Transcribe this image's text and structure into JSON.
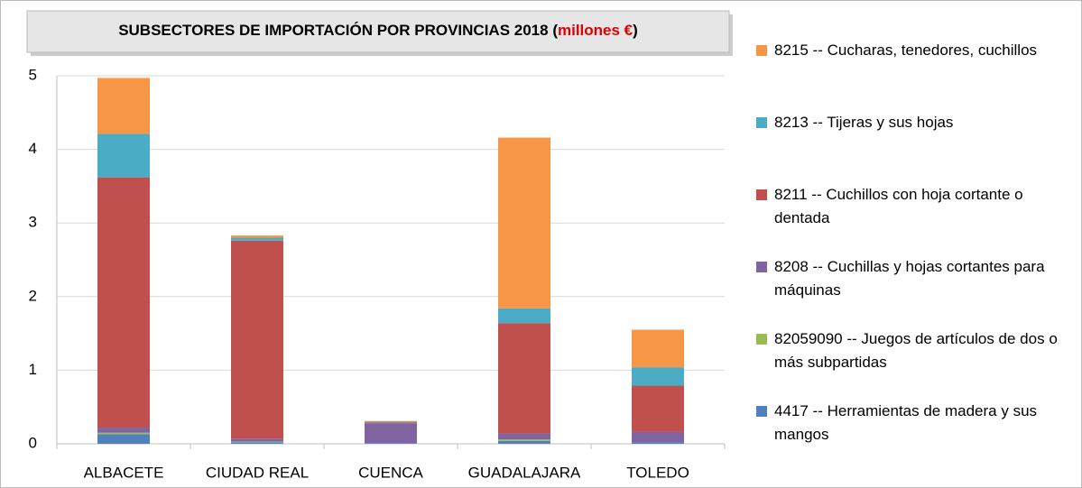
{
  "chart_data": {
    "type": "stacked_bar",
    "title_parts": [
      "SUBSECTORES  DE IMPORTACIÓN  POR PROVINCIAS 2018 (",
      "millones €",
      ")"
    ],
    "categories": [
      "ALBACETE",
      "CIUDAD REAL",
      "CUENCA",
      "GUADALAJARA",
      "TOLEDO"
    ],
    "series": [
      {
        "name": "4417 -- Herramientas de madera y sus mangos",
        "color": "#4f81bd",
        "values": [
          0.13,
          0.02,
          0.01,
          0.04,
          0.02
        ]
      },
      {
        "name": "82059090 -- Juegos de artículos de dos o más subpartidas",
        "color": "#9bbb59",
        "values": [
          0.02,
          0.01,
          0,
          0.02,
          0
        ]
      },
      {
        "name": "8208 -- Cuchillas y hojas cortantes para máquinas",
        "color": "#8064a2",
        "values": [
          0.07,
          0.04,
          0.27,
          0.08,
          0.14
        ]
      },
      {
        "name": "8211 -- Cuchillos con hoja cortante o dentada",
        "color": "#c0504d",
        "values": [
          3.4,
          2.69,
          0.01,
          1.5,
          0.63
        ]
      },
      {
        "name": "8213 -- Tijeras y sus hojas",
        "color": "#4bacc6",
        "values": [
          0.59,
          0.04,
          0.01,
          0.2,
          0.25
        ]
      },
      {
        "name": "8215 --  Cucharas, tenedores, cuchillos",
        "color": "#f79646",
        "values": [
          0.76,
          0.03,
          0.01,
          2.32,
          0.51
        ]
      }
    ],
    "ylim": [
      0,
      5
    ],
    "yticks": [
      0,
      1,
      2,
      3,
      4,
      5
    ],
    "grid": true,
    "legend": "right"
  }
}
